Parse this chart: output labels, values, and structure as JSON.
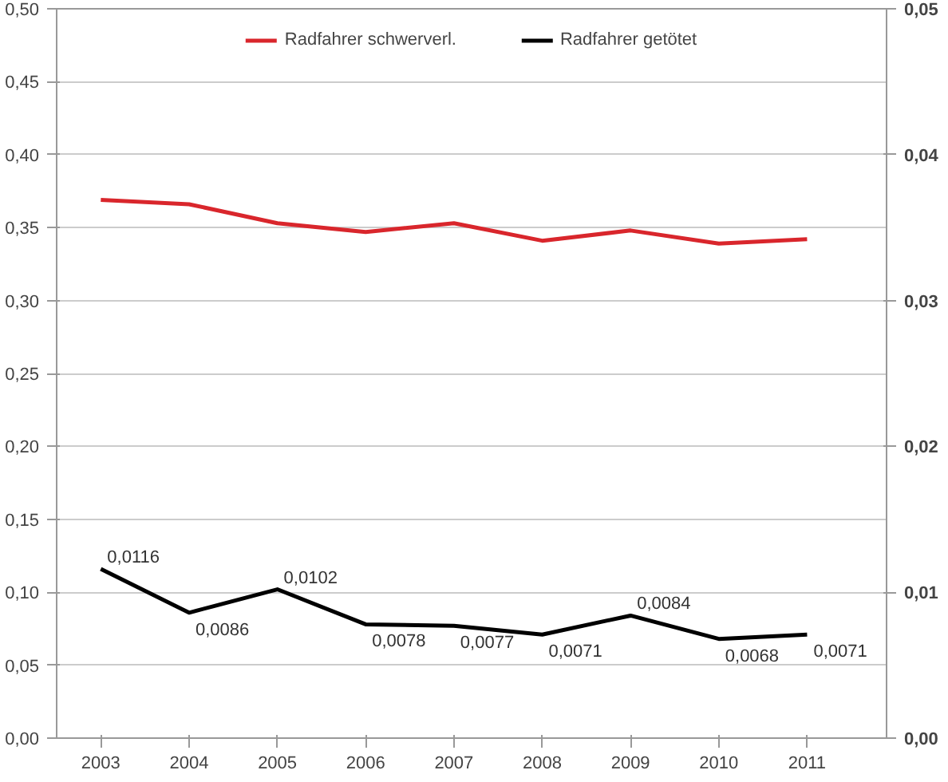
{
  "chart_data": {
    "type": "line",
    "categories": [
      "2003",
      "2004",
      "2005",
      "2006",
      "2007",
      "2008",
      "2009",
      "2010",
      "2011"
    ],
    "series": [
      {
        "name": "Radfahrer schwerverl.",
        "color": "#d9262c",
        "values": [
          0.369,
          0.366,
          0.353,
          0.347,
          0.353,
          0.341,
          0.348,
          0.339,
          0.342
        ]
      },
      {
        "name": "Radfahrer getötet",
        "color": "#000000",
        "axis": "y2",
        "values": [
          0.0116,
          0.0086,
          0.0102,
          0.0078,
          0.0077,
          0.0071,
          0.0084,
          0.0068,
          0.0071
        ],
        "value_labels": [
          "0,0116",
          "0,0086",
          "0,0102",
          "0,0078",
          "0,0077",
          "0,0071",
          "0,0084",
          "0,0068",
          "0,0071"
        ]
      }
    ],
    "ylim": [
      0,
      0.5
    ],
    "yticks": [
      {
        "value": 0,
        "label": "0,00"
      },
      {
        "value": 0.05,
        "label": "0,05"
      },
      {
        "value": 0.1,
        "label": "0,10"
      },
      {
        "value": 0.15,
        "label": "0,15"
      },
      {
        "value": 0.2,
        "label": "0,20"
      },
      {
        "value": 0.25,
        "label": "0,25"
      },
      {
        "value": 0.3,
        "label": "0,30"
      },
      {
        "value": 0.35,
        "label": "0,35"
      },
      {
        "value": 0.4,
        "label": "0,40"
      },
      {
        "value": 0.45,
        "label": "0,45"
      },
      {
        "value": 0.5,
        "label": "0,50"
      }
    ],
    "y2lim": [
      0,
      0.05
    ],
    "y2ticks": [
      {
        "value": 0,
        "label": "0,00"
      },
      {
        "value": 0.01,
        "label": "0,01"
      },
      {
        "value": 0.02,
        "label": "0,02"
      },
      {
        "value": 0.03,
        "label": "0,03"
      },
      {
        "value": 0.04,
        "label": "0,04"
      },
      {
        "value": 0.05,
        "label": "0,05"
      }
    ],
    "grid": "y",
    "legend": "top",
    "marker": "none",
    "line_style": "solid"
  }
}
